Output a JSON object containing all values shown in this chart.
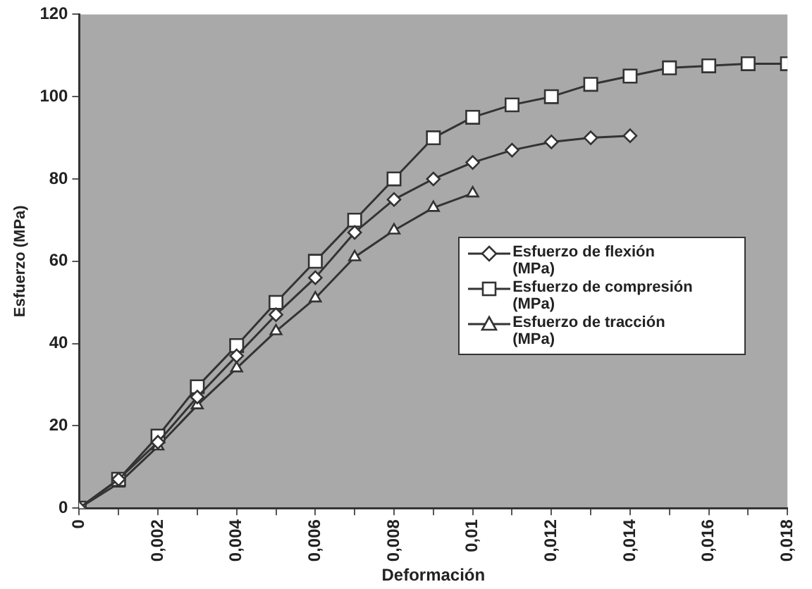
{
  "chart_data": {
    "type": "line",
    "xlabel": "Deformación",
    "ylabel": "Esfuerzo (MPa)",
    "x": [
      0,
      0.001,
      0.002,
      0.003,
      0.004,
      0.005,
      0.006,
      0.007,
      0.008,
      0.009,
      0.01,
      0.011,
      0.012,
      0.013,
      0.014,
      0.015,
      0.016,
      0.017,
      0.018
    ],
    "xlim": [
      0,
      0.018
    ],
    "xticks": [
      0,
      {
        "value": 0.001,
        "label": null
      },
      {
        "value": 0.002,
        "label": "0,002"
      },
      {
        "value": 0.003,
        "label": null
      },
      {
        "value": 0.004,
        "label": "0,004"
      },
      {
        "value": 0.005,
        "label": null
      },
      {
        "value": 0.006,
        "label": "0,006"
      },
      {
        "value": 0.007,
        "label": null
      },
      {
        "value": 0.008,
        "label": "0,008"
      },
      {
        "value": 0.009,
        "label": null
      },
      {
        "value": 0.01,
        "label": "0,01"
      },
      {
        "value": 0.011,
        "label": null
      },
      {
        "value": 0.012,
        "label": "0,012"
      },
      {
        "value": 0.013,
        "label": null
      },
      {
        "value": 0.014,
        "label": "0,014"
      },
      {
        "value": 0.015,
        "label": null
      },
      {
        "value": 0.016,
        "label": "0,016"
      },
      {
        "value": 0.017,
        "label": null
      },
      {
        "value": 0.018,
        "label": "0,018"
      }
    ],
    "ylim": [
      0,
      120
    ],
    "yticks": [
      0,
      20,
      40,
      60,
      80,
      100,
      120
    ],
    "grid": false,
    "legend": "right",
    "line_style": "solid",
    "series": [
      {
        "name": "Esfuerzo de flexión (MPa)",
        "color": "#333333",
        "marker": "diamond",
        "values": [
          0,
          7,
          16,
          27,
          37,
          47,
          56,
          67,
          75,
          80,
          84,
          87,
          89,
          90,
          90.5,
          null,
          null,
          null,
          null
        ]
      },
      {
        "name": "Esfuerzo de compresión (MPa)",
        "color": "#333333",
        "marker": "square",
        "values": [
          0,
          7,
          17.5,
          29.5,
          39.5,
          50,
          60,
          70,
          80,
          90,
          95,
          98,
          100,
          103,
          105,
          107,
          107.5,
          108,
          108
        ]
      },
      {
        "name": "Esfuerzo de tracción (MPa)",
        "color": "#333333",
        "marker": "triangle",
        "values": [
          0,
          6,
          15,
          25,
          34,
          43,
          51,
          61,
          67.5,
          73,
          76.5,
          null,
          null,
          null,
          null,
          null,
          null,
          null,
          null
        ]
      }
    ]
  }
}
